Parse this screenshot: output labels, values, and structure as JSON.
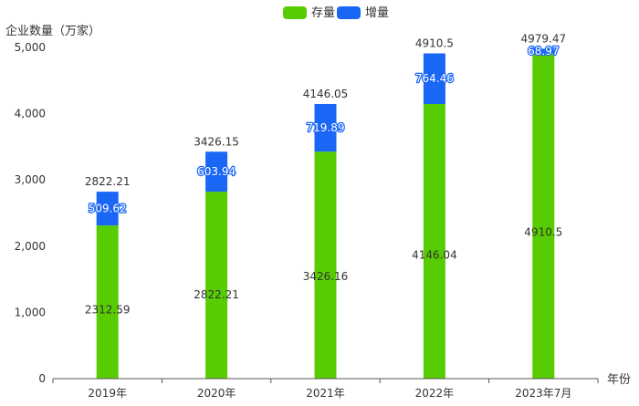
{
  "chart_data": {
    "type": "bar",
    "stacked": true,
    "ylabel": "企业数量（万家）",
    "xlabel": "年份",
    "categories": [
      "2019年",
      "2020年",
      "2021年",
      "2022年",
      "2023年7月"
    ],
    "ylim": [
      0,
      5000
    ],
    "yticks": [
      0,
      1000,
      2000,
      3000,
      4000,
      5000
    ],
    "ytick_labels": [
      "0",
      "1,000",
      "2,000",
      "3,000",
      "4,000",
      "5,000"
    ],
    "grid": false,
    "legend_position": "top-center",
    "series": [
      {
        "name": "存量",
        "color": "#58cc02",
        "values": [
          2312.59,
          2822.21,
          3426.16,
          4146.04,
          4910.5
        ],
        "labels": [
          "2312.59",
          "2822.21",
          "3426.16",
          "4146.04",
          "4910.5"
        ]
      },
      {
        "name": "增量",
        "color": "#1a66f5",
        "values": [
          509.62,
          603.94,
          719.89,
          764.46,
          68.97
        ],
        "labels": [
          "509.62",
          "603.94",
          "719.89",
          "764.46",
          "68.97"
        ]
      }
    ],
    "totals": [
      "2822.21",
      "3426.15",
      "4146.05",
      "4910.5",
      "4979.47"
    ]
  }
}
